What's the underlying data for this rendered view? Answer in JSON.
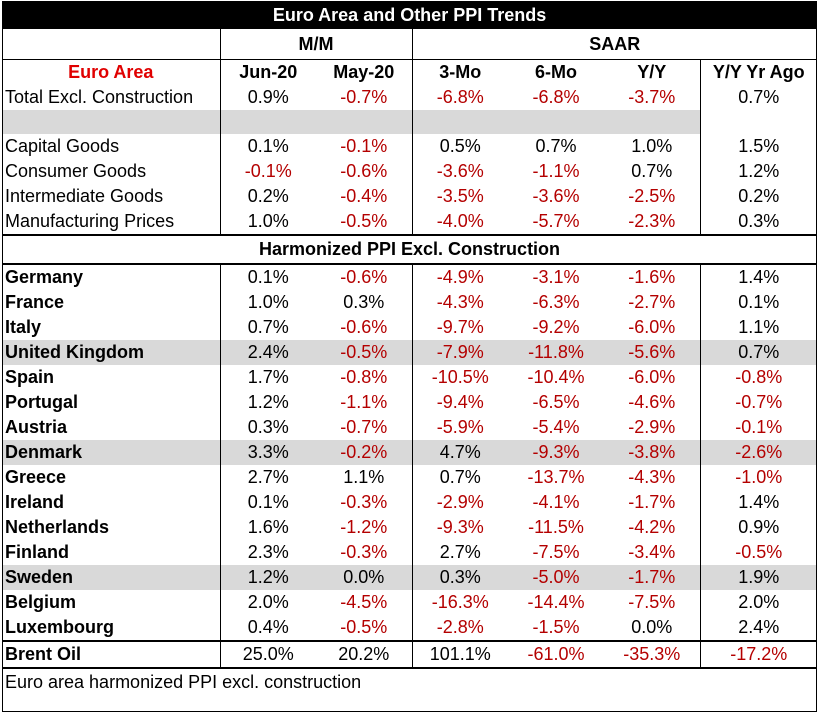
{
  "title": "Euro Area and Other PPI Trends",
  "group_headers": {
    "mm": "M/M",
    "saar": "SAAR"
  },
  "column_headers": [
    "Euro Area",
    "Jun-20",
    "May-20",
    "3-Mo",
    "6-Mo",
    "Y/Y",
    "Y/Y Yr Ago"
  ],
  "euro_area_rows": [
    {
      "label": "Total Excl. Construction",
      "values": [
        "0.9%",
        "-0.7%",
        "-6.8%",
        "-6.8%",
        "-3.7%",
        "0.7%"
      ]
    }
  ],
  "goods_rows": [
    {
      "label": "Capital Goods",
      "values": [
        "0.1%",
        "-0.1%",
        "0.5%",
        "0.7%",
        "1.0%",
        "1.5%"
      ]
    },
    {
      "label": "Consumer Goods",
      "values": [
        "-0.1%",
        "-0.6%",
        "-3.6%",
        "-1.1%",
        "0.7%",
        "1.2%"
      ]
    },
    {
      "label": "Intermediate Goods",
      "values": [
        "0.2%",
        "-0.4%",
        "-3.5%",
        "-3.6%",
        "-2.5%",
        "0.2%"
      ]
    },
    {
      "label": "Manufacturing Prices",
      "values": [
        "1.0%",
        "-0.5%",
        "-4.0%",
        "-5.7%",
        "-2.3%",
        "0.3%"
      ]
    }
  ],
  "section_title": "Harmonized PPI Excl. Construction",
  "country_rows": [
    {
      "label": "Germany",
      "values": [
        "0.1%",
        "-0.6%",
        "-4.9%",
        "-3.1%",
        "-1.6%",
        "1.4%"
      ],
      "shaded": false
    },
    {
      "label": "France",
      "values": [
        "1.0%",
        "0.3%",
        "-4.3%",
        "-6.3%",
        "-2.7%",
        "0.1%"
      ],
      "shaded": false
    },
    {
      "label": "Italy",
      "values": [
        "0.7%",
        "-0.6%",
        "-9.7%",
        "-9.2%",
        "-6.0%",
        "1.1%"
      ],
      "shaded": false
    },
    {
      "label": "United Kingdom",
      "values": [
        "2.4%",
        "-0.5%",
        "-7.9%",
        "-11.8%",
        "-5.6%",
        "0.7%"
      ],
      "shaded": true
    },
    {
      "label": "Spain",
      "values": [
        "1.7%",
        "-0.8%",
        "-10.5%",
        "-10.4%",
        "-6.0%",
        "-0.8%"
      ],
      "shaded": false
    },
    {
      "label": "Portugal",
      "values": [
        "1.2%",
        "-1.1%",
        "-9.4%",
        "-6.5%",
        "-4.6%",
        "-0.7%"
      ],
      "shaded": false
    },
    {
      "label": "Austria",
      "values": [
        "0.3%",
        "-0.7%",
        "-5.9%",
        "-5.4%",
        "-2.9%",
        "-0.1%"
      ],
      "shaded": false
    },
    {
      "label": "Denmark",
      "values": [
        "3.3%",
        "-0.2%",
        "4.7%",
        "-9.3%",
        "-3.8%",
        "-2.6%"
      ],
      "shaded": true
    },
    {
      "label": "Greece",
      "values": [
        "2.7%",
        "1.1%",
        "0.7%",
        "-13.7%",
        "-4.3%",
        "-1.0%"
      ],
      "shaded": false
    },
    {
      "label": "Ireland",
      "values": [
        "0.1%",
        "-0.3%",
        "-2.9%",
        "-4.1%",
        "-1.7%",
        "1.4%"
      ],
      "shaded": false
    },
    {
      "label": "Netherlands",
      "values": [
        "1.6%",
        "-1.2%",
        "-9.3%",
        "-11.5%",
        "-4.2%",
        "0.9%"
      ],
      "shaded": false
    },
    {
      "label": "Finland",
      "values": [
        "2.3%",
        "-0.3%",
        "2.7%",
        "-7.5%",
        "-3.4%",
        "-0.5%"
      ],
      "shaded": false
    },
    {
      "label": "Sweden",
      "values": [
        "1.2%",
        "0.0%",
        "0.3%",
        "-5.0%",
        "-1.7%",
        "1.9%"
      ],
      "shaded": true
    },
    {
      "label": "Belgium",
      "values": [
        "2.0%",
        "-4.5%",
        "-16.3%",
        "-14.4%",
        "-7.5%",
        "2.0%"
      ],
      "shaded": false
    },
    {
      "label": "Luxembourg",
      "values": [
        "0.4%",
        "-0.5%",
        "-2.8%",
        "-1.5%",
        "0.0%",
        "2.4%"
      ],
      "shaded": false
    }
  ],
  "brent_row": {
    "label": "Brent Oil",
    "values": [
      "25.0%",
      "20.2%",
      "101.1%",
      "-61.0%",
      "-35.3%",
      "-17.2%"
    ]
  },
  "footnote": "Euro area harmonized PPI excl. construction",
  "colors": {
    "negative": "#b40000",
    "euro_area_header": "#e00000",
    "shade": "#d9d9d9",
    "title_bg": "#000000"
  }
}
